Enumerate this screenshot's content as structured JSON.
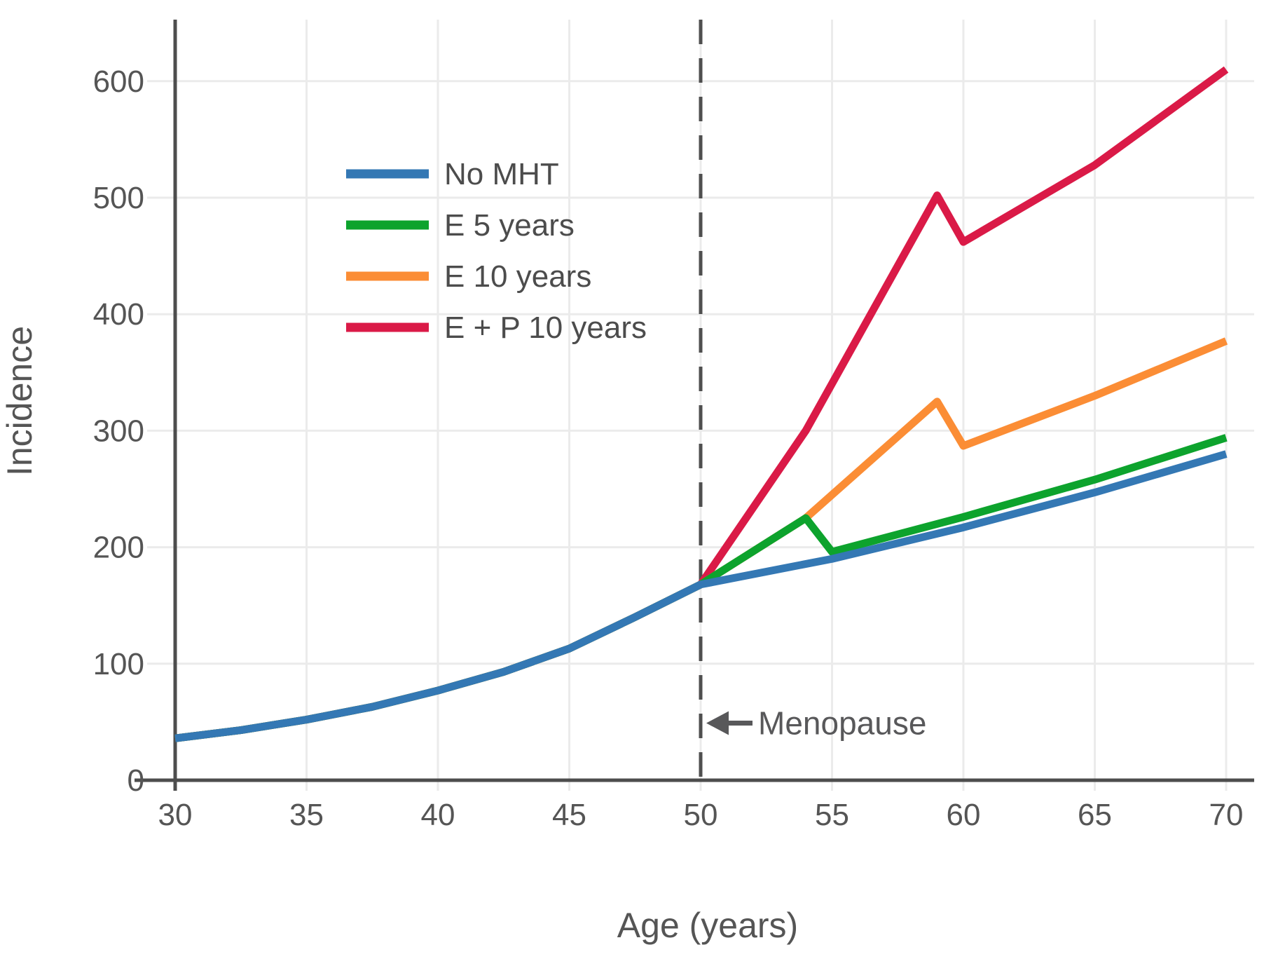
{
  "chart_data": {
    "type": "line",
    "title": "",
    "xlabel": "Age (years)",
    "ylabel": "Incidence",
    "x_ticks": [
      30,
      35,
      40,
      45,
      50,
      55,
      60,
      65,
      70
    ],
    "y_ticks": [
      0,
      100,
      200,
      300,
      400,
      500,
      600
    ],
    "xlim": [
      30,
      71
    ],
    "ylim": [
      0,
      650
    ],
    "grid": true,
    "legend_position": "upper-left",
    "series": [
      {
        "name": "No MHT",
        "color": "#3478b4",
        "x": [
          30,
          32.5,
          35,
          37.5,
          40,
          42.5,
          45,
          47.5,
          50,
          55,
          60,
          65,
          70
        ],
        "y": [
          36,
          43,
          52,
          63,
          77,
          93,
          113,
          140,
          168,
          190,
          217,
          247,
          280
        ]
      },
      {
        "name": "E 5 years",
        "color": "#0da32d",
        "x": [
          30,
          32.5,
          35,
          37.5,
          40,
          42.5,
          45,
          47.5,
          50,
          54,
          55,
          60,
          65,
          70
        ],
        "y": [
          36,
          43,
          52,
          63,
          77,
          93,
          113,
          140,
          168,
          225,
          196,
          226,
          258,
          294
        ]
      },
      {
        "name": "E 10 years",
        "color": "#fb8d35",
        "x": [
          30,
          32.5,
          35,
          37.5,
          40,
          42.5,
          45,
          47.5,
          50,
          54,
          59,
          60,
          65,
          70
        ],
        "y": [
          36,
          43,
          52,
          63,
          77,
          93,
          113,
          140,
          168,
          225,
          325,
          287,
          330,
          377
        ]
      },
      {
        "name": "E + P 10 years",
        "color": "#da1a47",
        "x": [
          30,
          32.5,
          35,
          37.5,
          40,
          42.5,
          45,
          47.5,
          50,
          54,
          59,
          60,
          65,
          70
        ],
        "y": [
          36,
          43,
          52,
          63,
          77,
          93,
          113,
          140,
          168,
          300,
          502,
          462,
          528,
          610
        ]
      }
    ],
    "reference_line": {
      "x": 50,
      "style": "dashed",
      "color": "#4f4f4f"
    },
    "annotation": {
      "text": "Menopause",
      "arrow": "left",
      "x": 50,
      "y": 49
    }
  },
  "colors": {
    "background": "#ffffff",
    "grid": "#ebebeb",
    "axis": "#4d4d4d",
    "tick_text": "#555555",
    "legend_text": "#4c4c4c",
    "annotation_text": "#58585a"
  }
}
